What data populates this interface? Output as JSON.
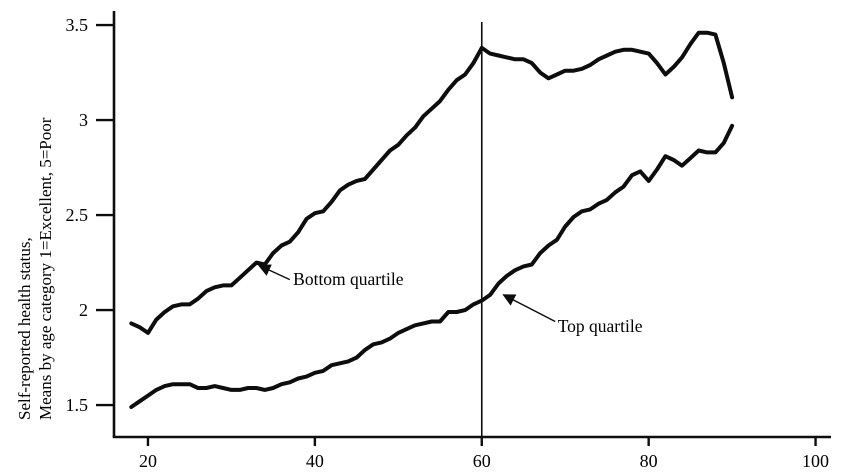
{
  "chart_data": {
    "type": "line",
    "title": "",
    "ylabel_line1": "Self-reported health status,",
    "ylabel_line2": "Means by age category 1=Excellent, 5=Poor",
    "xlabel": "",
    "x_ticks": [
      20,
      40,
      60,
      80,
      100
    ],
    "y_ticks": [
      1.5,
      2,
      2.5,
      3,
      3.5
    ],
    "xlim": [
      15.93,
      101.85
    ],
    "ylim": [
      1.332,
      3.574
    ],
    "grid": false,
    "line_color": "#0d0d0d",
    "reference_line": {
      "x": 60
    },
    "x": [
      18,
      19,
      20,
      21,
      22,
      23,
      24,
      25,
      26,
      27,
      28,
      29,
      30,
      31,
      32,
      33,
      34,
      35,
      36,
      37,
      38,
      39,
      40,
      41,
      42,
      43,
      44,
      45,
      46,
      47,
      48,
      49,
      50,
      51,
      52,
      53,
      54,
      55,
      56,
      57,
      58,
      59,
      60,
      61,
      62,
      63,
      64,
      65,
      66,
      67,
      68,
      69,
      70,
      71,
      72,
      73,
      74,
      75,
      76,
      77,
      78,
      79,
      80,
      81,
      82,
      83,
      84,
      85,
      86,
      87,
      88,
      89,
      90
    ],
    "series": [
      {
        "name": "Bottom quartile",
        "values": [
          1.93,
          1.91,
          1.88,
          1.95,
          1.99,
          2.02,
          2.03,
          2.03,
          2.06,
          2.1,
          2.12,
          2.13,
          2.13,
          2.17,
          2.21,
          2.25,
          2.24,
          2.3,
          2.34,
          2.36,
          2.41,
          2.48,
          2.51,
          2.52,
          2.57,
          2.63,
          2.66,
          2.68,
          2.69,
          2.74,
          2.79,
          2.84,
          2.87,
          2.92,
          2.96,
          3.02,
          3.06,
          3.1,
          3.16,
          3.21,
          3.24,
          3.3,
          3.38,
          3.35,
          3.34,
          3.33,
          3.32,
          3.32,
          3.3,
          3.25,
          3.22,
          3.24,
          3.26,
          3.26,
          3.27,
          3.29,
          3.32,
          3.34,
          3.36,
          3.37,
          3.37,
          3.36,
          3.35,
          3.3,
          3.24,
          3.28,
          3.33,
          3.4,
          3.46,
          3.46,
          3.45,
          3.3,
          3.12
        ]
      },
      {
        "name": "Top quartile",
        "values": [
          1.49,
          1.52,
          1.55,
          1.58,
          1.6,
          1.61,
          1.61,
          1.61,
          1.59,
          1.59,
          1.6,
          1.59,
          1.58,
          1.58,
          1.59,
          1.59,
          1.58,
          1.59,
          1.61,
          1.62,
          1.64,
          1.65,
          1.67,
          1.68,
          1.71,
          1.72,
          1.73,
          1.75,
          1.79,
          1.82,
          1.83,
          1.85,
          1.88,
          1.9,
          1.92,
          1.93,
          1.94,
          1.94,
          1.99,
          1.99,
          2.0,
          2.03,
          2.05,
          2.08,
          2.14,
          2.18,
          2.21,
          2.23,
          2.24,
          2.3,
          2.34,
          2.37,
          2.44,
          2.49,
          2.52,
          2.53,
          2.56,
          2.58,
          2.62,
          2.65,
          2.71,
          2.73,
          2.68,
          2.74,
          2.81,
          2.79,
          2.76,
          2.8,
          2.84,
          2.83,
          2.83,
          2.88,
          2.97
        ]
      }
    ],
    "annotations": [
      {
        "text": "Bottom quartile",
        "tip": [
          33.3,
          2.235
        ],
        "tail": [
          37.0,
          2.16
        ],
        "text_pos": [
          37.4,
          2.215
        ]
      },
      {
        "text": "Top quartile",
        "tip": [
          62.6,
          2.08
        ],
        "tail": [
          68.8,
          1.94
        ],
        "text_pos": [
          69.1,
          1.968
        ]
      }
    ]
  }
}
